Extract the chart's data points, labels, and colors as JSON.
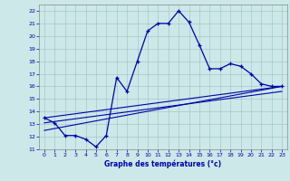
{
  "xlabel": "Graphe des températures (°c)",
  "bg_color": "#cce8e8",
  "line_color": "#0000aa",
  "xlim": [
    -0.5,
    23.5
  ],
  "ylim": [
    11,
    22.5
  ],
  "xticks": [
    0,
    1,
    2,
    3,
    4,
    5,
    6,
    7,
    8,
    9,
    10,
    11,
    12,
    13,
    14,
    15,
    16,
    17,
    18,
    19,
    20,
    21,
    22,
    23
  ],
  "yticks": [
    11,
    12,
    13,
    14,
    15,
    16,
    17,
    18,
    19,
    20,
    21,
    22
  ],
  "temp_data": [
    [
      0,
      13.5
    ],
    [
      1,
      13.1
    ],
    [
      2,
      12.1
    ],
    [
      3,
      12.1
    ],
    [
      4,
      11.8
    ],
    [
      5,
      11.2
    ],
    [
      6,
      12.1
    ],
    [
      7,
      16.7
    ],
    [
      8,
      15.6
    ],
    [
      9,
      18.0
    ],
    [
      10,
      20.4
    ],
    [
      11,
      21.0
    ],
    [
      12,
      21.0
    ],
    [
      13,
      22.0
    ],
    [
      14,
      21.1
    ],
    [
      15,
      19.3
    ],
    [
      16,
      17.4
    ],
    [
      17,
      17.4
    ],
    [
      18,
      17.8
    ],
    [
      19,
      17.6
    ],
    [
      20,
      17.0
    ],
    [
      21,
      16.2
    ],
    [
      22,
      16.0
    ],
    [
      23,
      16.0
    ]
  ],
  "reg_lines": [
    [
      [
        0,
        13.5
      ],
      [
        23,
        16.0
      ]
    ],
    [
      [
        0,
        13.1
      ],
      [
        23,
        15.6
      ]
    ],
    [
      [
        0,
        12.5
      ],
      [
        23,
        16.0
      ]
    ]
  ]
}
